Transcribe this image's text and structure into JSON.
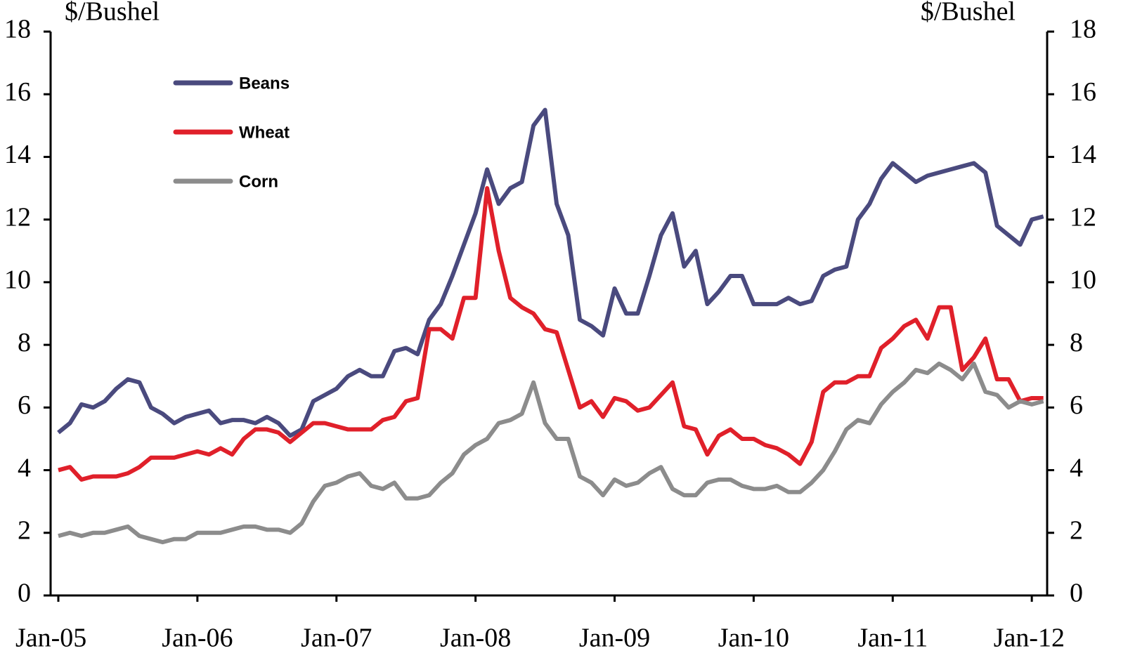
{
  "chart_data": {
    "type": "line",
    "y_label": "$/Bushel",
    "y2_label": "$/Bushel",
    "x": [
      "Jan-05",
      "Feb-05",
      "Mar-05",
      "Apr-05",
      "May-05",
      "Jun-05",
      "Jul-05",
      "Aug-05",
      "Sep-05",
      "Oct-05",
      "Nov-05",
      "Dec-05",
      "Jan-06",
      "Feb-06",
      "Mar-06",
      "Apr-06",
      "May-06",
      "Jun-06",
      "Jul-06",
      "Aug-06",
      "Sep-06",
      "Oct-06",
      "Nov-06",
      "Dec-06",
      "Jan-07",
      "Feb-07",
      "Mar-07",
      "Apr-07",
      "May-07",
      "Jun-07",
      "Jul-07",
      "Aug-07",
      "Sep-07",
      "Oct-07",
      "Nov-07",
      "Dec-07",
      "Jan-08",
      "Feb-08",
      "Mar-08",
      "Apr-08",
      "May-08",
      "Jun-08",
      "Jul-08",
      "Aug-08",
      "Sep-08",
      "Oct-08",
      "Nov-08",
      "Dec-08",
      "Jan-09",
      "Feb-09",
      "Mar-09",
      "Apr-09",
      "May-09",
      "Jun-09",
      "Jul-09",
      "Aug-09",
      "Sep-09",
      "Oct-09",
      "Nov-09",
      "Dec-09",
      "Jan-10",
      "Feb-10",
      "Mar-10",
      "Apr-10",
      "May-10",
      "Jun-10",
      "Jul-10",
      "Aug-10",
      "Sep-10",
      "Oct-10",
      "Nov-10",
      "Dec-10",
      "Jan-11",
      "Feb-11",
      "Mar-11",
      "Apr-11",
      "May-11",
      "Jun-11",
      "Jul-11",
      "Aug-11",
      "Sep-11",
      "Oct-11",
      "Nov-11",
      "Dec-11",
      "Jan-12",
      "Feb-12"
    ],
    "series": [
      {
        "name": "Beans",
        "color": "#4a4a7e",
        "values": [
          5.2,
          5.5,
          6.1,
          6.0,
          6.2,
          6.6,
          6.9,
          6.8,
          6.0,
          5.8,
          5.5,
          5.7,
          5.8,
          5.9,
          5.5,
          5.6,
          5.6,
          5.5,
          5.7,
          5.5,
          5.1,
          5.3,
          6.2,
          6.4,
          6.6,
          7.0,
          7.2,
          7.0,
          7.0,
          7.8,
          7.9,
          7.7,
          8.8,
          9.3,
          10.2,
          11.2,
          12.2,
          13.6,
          12.5,
          13.0,
          13.2,
          15.0,
          15.5,
          12.5,
          11.5,
          8.8,
          8.6,
          8.3,
          9.8,
          9.0,
          9.0,
          10.2,
          11.5,
          12.2,
          10.5,
          11.0,
          9.3,
          9.7,
          10.2,
          10.2,
          9.3,
          9.3,
          9.3,
          9.5,
          9.3,
          9.4,
          10.2,
          10.4,
          10.5,
          12.0,
          12.5,
          13.3,
          13.8,
          13.5,
          13.2,
          13.4,
          13.5,
          13.6,
          13.7,
          13.8,
          13.5,
          11.8,
          11.5,
          11.2,
          12.0,
          12.1
        ]
      },
      {
        "name": "Wheat",
        "color": "#e0202a",
        "values": [
          4.0,
          4.1,
          3.7,
          3.8,
          3.8,
          3.8,
          3.9,
          4.1,
          4.4,
          4.4,
          4.4,
          4.5,
          4.6,
          4.5,
          4.7,
          4.5,
          5.0,
          5.3,
          5.3,
          5.2,
          4.9,
          5.2,
          5.5,
          5.5,
          5.4,
          5.3,
          5.3,
          5.3,
          5.6,
          5.7,
          6.2,
          6.3,
          8.5,
          8.5,
          8.2,
          9.5,
          9.5,
          13.0,
          11.0,
          9.5,
          9.2,
          9.0,
          8.5,
          8.4,
          7.2,
          6.0,
          6.2,
          5.7,
          6.3,
          6.2,
          5.9,
          6.0,
          6.4,
          6.8,
          5.4,
          5.3,
          4.5,
          5.1,
          5.3,
          5.0,
          5.0,
          4.8,
          4.7,
          4.5,
          4.2,
          4.9,
          6.5,
          6.8,
          6.8,
          7.0,
          7.0,
          7.9,
          8.2,
          8.6,
          8.8,
          8.2,
          9.2,
          9.2,
          7.2,
          7.6,
          8.2,
          6.9,
          6.9,
          6.2,
          6.3,
          6.3
        ]
      },
      {
        "name": "Corn",
        "color": "#8c8c8c",
        "values": [
          1.9,
          2.0,
          1.9,
          2.0,
          2.0,
          2.1,
          2.2,
          1.9,
          1.8,
          1.7,
          1.8,
          1.8,
          2.0,
          2.0,
          2.0,
          2.1,
          2.2,
          2.2,
          2.1,
          2.1,
          2.0,
          2.3,
          3.0,
          3.5,
          3.6,
          3.8,
          3.9,
          3.5,
          3.4,
          3.6,
          3.1,
          3.1,
          3.2,
          3.6,
          3.9,
          4.5,
          4.8,
          5.0,
          5.5,
          5.6,
          5.8,
          6.8,
          5.5,
          5.0,
          5.0,
          3.8,
          3.6,
          3.2,
          3.7,
          3.5,
          3.6,
          3.9,
          4.1,
          3.4,
          3.2,
          3.2,
          3.6,
          3.7,
          3.7,
          3.5,
          3.4,
          3.4,
          3.5,
          3.3,
          3.3,
          3.6,
          4.0,
          4.6,
          5.3,
          5.6,
          5.5,
          6.1,
          6.5,
          6.8,
          7.2,
          7.1,
          7.4,
          7.2,
          6.9,
          7.4,
          6.5,
          6.4,
          6.0,
          6.2,
          6.1,
          6.2
        ]
      }
    ],
    "xticks": [
      "Jan-05",
      "Jan-06",
      "Jan-07",
      "Jan-08",
      "Jan-09",
      "Jan-10",
      "Jan-11",
      "Jan-12"
    ],
    "ylim": [
      0,
      18
    ],
    "yticks": [
      0,
      2,
      4,
      6,
      8,
      10,
      12,
      14,
      16,
      18
    ],
    "y2lim": [
      0,
      18
    ],
    "y2ticks": [
      0,
      2,
      4,
      6,
      8,
      10,
      12,
      14,
      16,
      18
    ],
    "grid": false,
    "legend": "upper left"
  }
}
